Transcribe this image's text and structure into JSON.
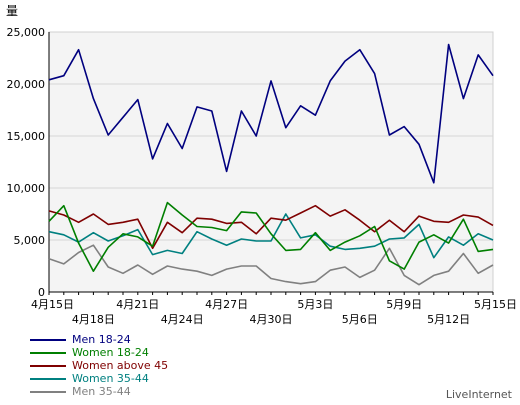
{
  "chart_data": {
    "type": "line",
    "title": "",
    "ylabel": "量",
    "xlabel": "",
    "ylim": [
      0,
      25000
    ],
    "yticks": [
      "0",
      "5,000",
      "10,000",
      "15,000",
      "20,000",
      "25,000"
    ],
    "ytick_values": [
      0,
      5000,
      10000,
      15000,
      20000,
      25000
    ],
    "grid": true,
    "legend_position": "bottom-left",
    "x": [
      "4月15日",
      "4月16日",
      "4月17日",
      "4月18日",
      "4月19日",
      "4月20日",
      "4月21日",
      "4月22日",
      "4月23日",
      "4月24日",
      "4月25日",
      "4月26日",
      "4月27日",
      "4月28日",
      "4月29日",
      "4月30日",
      "5月1日",
      "5月2日",
      "5月3日",
      "5月4日",
      "5月5日",
      "5月6日",
      "5月7日",
      "5月8日",
      "5月9日",
      "5月10日",
      "5月11日",
      "5月12日",
      "5月13日",
      "5月14日",
      "5月15日"
    ],
    "xtick_labels": [
      {
        "index": 0,
        "label": "4月15日",
        "row": 0
      },
      {
        "index": 3,
        "label": "4月18日",
        "row": 1
      },
      {
        "index": 6,
        "label": "4月21日",
        "row": 0
      },
      {
        "index": 9,
        "label": "4月24日",
        "row": 1
      },
      {
        "index": 12,
        "label": "4月27日",
        "row": 0
      },
      {
        "index": 15,
        "label": "4月30日",
        "row": 1
      },
      {
        "index": 18,
        "label": "5月3日",
        "row": 0
      },
      {
        "index": 21,
        "label": "5月6日",
        "row": 1
      },
      {
        "index": 24,
        "label": "5月9日",
        "row": 0
      },
      {
        "index": 27,
        "label": "5月12日",
        "row": 1
      },
      {
        "index": 30,
        "label": "5月15日",
        "row": 0
      }
    ],
    "series": [
      {
        "name": "Men 18-24",
        "color": "#00007f",
        "values": [
          20400,
          20800,
          23300,
          18600,
          15100,
          16800,
          18500,
          12800,
          16200,
          13800,
          17800,
          17400,
          11600,
          17400,
          15000,
          20300,
          15800,
          17900,
          17000,
          20300,
          22200,
          23300,
          21000,
          15100,
          15900,
          14200,
          10500,
          23800,
          18600,
          22800,
          20800
        ]
      },
      {
        "name": "Women 18-24",
        "color": "#007f00",
        "values": [
          6800,
          8300,
          4700,
          2000,
          4300,
          5600,
          5300,
          4400,
          8600,
          7400,
          6300,
          6200,
          5900,
          7700,
          7600,
          5600,
          4000,
          4100,
          5700,
          4000,
          4800,
          5400,
          6300,
          3000,
          2200,
          4800,
          5500,
          4700,
          7000,
          3900,
          4100
        ]
      },
      {
        "name": "Women above 45",
        "color": "#7f0000",
        "values": [
          7800,
          7400,
          6700,
          7500,
          6500,
          6700,
          7000,
          4200,
          6700,
          5700,
          7100,
          7000,
          6600,
          6700,
          5600,
          7100,
          6900,
          7600,
          8300,
          7300,
          7900,
          6900,
          5800,
          6900,
          5800,
          7300,
          6800,
          6700,
          7400,
          7200,
          6400
        ]
      },
      {
        "name": "Women 35-44",
        "color": "#008080",
        "values": [
          5800,
          5500,
          4800,
          5700,
          4900,
          5400,
          6000,
          3600,
          4000,
          3700,
          5800,
          5100,
          4500,
          5100,
          4900,
          4900,
          7500,
          5200,
          5500,
          4400,
          4100,
          4200,
          4400,
          5100,
          5200,
          6500,
          3300,
          5300,
          4500,
          5600,
          5000
        ]
      },
      {
        "name": "Men 35-44",
        "color": "#808080",
        "values": [
          3200,
          2700,
          3800,
          4500,
          2400,
          1800,
          2600,
          1700,
          2500,
          2200,
          2000,
          1600,
          2200,
          2500,
          2500,
          1300,
          1000,
          800,
          1000,
          2100,
          2400,
          1400,
          2100,
          4200,
          1600,
          700,
          1600,
          2000,
          3700,
          1800,
          2600
        ]
      }
    ]
  },
  "brand": "LiveInternet"
}
